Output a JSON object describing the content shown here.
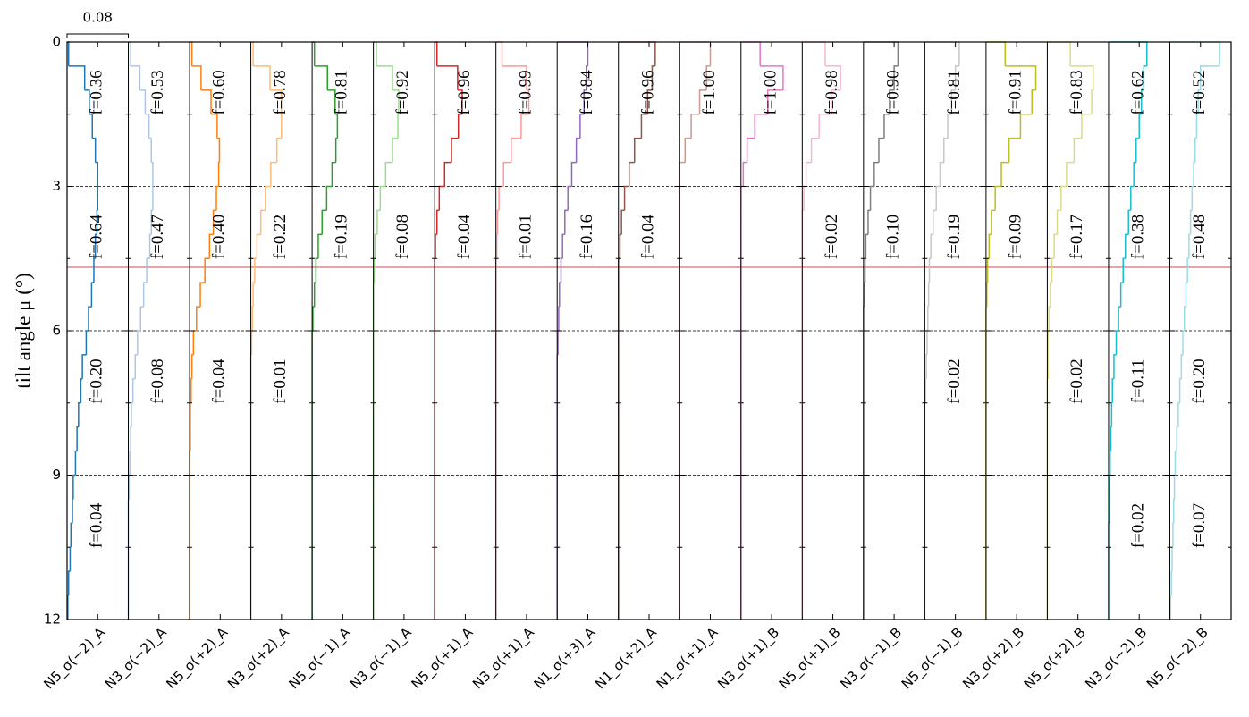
{
  "chart_data": {
    "type": "panel-histogram",
    "ylabel": "tilt angle μ (°)",
    "ylim": [
      0,
      12
    ],
    "yticks": [
      0,
      3,
      6,
      9,
      12
    ],
    "yticks_minor": [
      1.5,
      4.5,
      7.5,
      10.5
    ],
    "xlim": [
      0,
      0.08
    ],
    "xticks": [
      0.04
    ],
    "scale_bar": 0.08,
    "grid": true,
    "reference_line": {
      "value": 4.68,
      "color": "#c0504d"
    },
    "bins": [
      0,
      0.5,
      1,
      1.5,
      2,
      2.5,
      3,
      3.5,
      4,
      4.5,
      5,
      5.5,
      6,
      6.5,
      7,
      7.5,
      8,
      8.5,
      9,
      9.5,
      10,
      10.5,
      11,
      11.5,
      12
    ],
    "band_edges": [
      0,
      3,
      6,
      9,
      12
    ],
    "series": [
      {
        "name": "N5_σ(−2)_A",
        "color": "#1f77b4",
        "values": [
          0.002,
          0.023,
          0.029,
          0.033,
          0.037,
          0.04,
          0.04,
          0.039,
          0.037,
          0.035,
          0.032,
          0.028,
          0.025,
          0.02,
          0.018,
          0.015,
          0.013,
          0.011,
          0.008,
          0.007,
          0.005,
          0.004,
          0.002,
          0.001
        ],
        "fractions": [
          0.36,
          0.64,
          0.2,
          0.04
        ],
        "fraction_labels": [
          "f=0.36",
          "f=0.64",
          "f=0.20",
          "f=0.04"
        ]
      },
      {
        "name": "N3_σ(−2)_A",
        "color": "#aec7e8",
        "values": [
          0.003,
          0.015,
          0.022,
          0.027,
          0.03,
          0.032,
          0.032,
          0.03,
          0.028,
          0.024,
          0.02,
          0.016,
          0.012,
          0.009,
          0.006,
          0.004,
          0.003,
          0.002,
          0.001,
          0,
          0,
          0,
          0,
          0
        ],
        "fractions": [
          0.53,
          0.47,
          0.08,
          null
        ],
        "fraction_labels": [
          "f=0.53",
          "f=0.47",
          "f=0.08",
          null
        ]
      },
      {
        "name": "N5_σ(+2)_A",
        "color": "#ff7f0e",
        "values": [
          0.003,
          0.015,
          0.028,
          0.036,
          0.039,
          0.038,
          0.035,
          0.031,
          0.026,
          0.02,
          0.014,
          0.009,
          0.005,
          0.003,
          0.002,
          0.001,
          0.001,
          0,
          0,
          0,
          0,
          0,
          0,
          0
        ],
        "fractions": [
          0.6,
          0.4,
          0.04,
          null
        ],
        "fraction_labels": [
          "f=0.60",
          "f=0.40",
          "f=0.04",
          null
        ]
      },
      {
        "name": "N3_σ(+2)_A",
        "color": "#ffbb78",
        "values": [
          0.003,
          0.025,
          0.04,
          0.04,
          0.034,
          0.026,
          0.019,
          0.013,
          0.008,
          0.005,
          0.003,
          0.002,
          0.001,
          0,
          0,
          0,
          0,
          0,
          0,
          0,
          0,
          0,
          0,
          0
        ],
        "fractions": [
          0.78,
          0.22,
          0.01,
          null
        ],
        "fraction_labels": [
          "f=0.78",
          "f=0.22",
          "f=0.01",
          null
        ]
      },
      {
        "name": "N5_σ(−1)_A",
        "color": "#2ca02c",
        "values": [
          0.003,
          0.02,
          0.03,
          0.033,
          0.031,
          0.026,
          0.019,
          0.013,
          0.008,
          0.005,
          0.003,
          0.001,
          0,
          0,
          0,
          0,
          0,
          0,
          0,
          0,
          0,
          0,
          0,
          0
        ],
        "fractions": [
          0.81,
          0.19,
          null,
          null
        ],
        "fraction_labels": [
          "f=0.81",
          "f=0.19",
          null,
          null
        ]
      },
      {
        "name": "N3_σ(−1)_A",
        "color": "#98df8a",
        "values": [
          0.004,
          0.025,
          0.033,
          0.032,
          0.025,
          0.016,
          0.009,
          0.005,
          0.002,
          0.001,
          0,
          0,
          0,
          0,
          0,
          0,
          0,
          0,
          0,
          0,
          0,
          0,
          0,
          0
        ],
        "fractions": [
          0.92,
          0.08,
          null,
          null
        ],
        "fraction_labels": [
          "f=0.92",
          "f=0.08",
          null,
          null
        ]
      },
      {
        "name": "N5_σ(+1)_A",
        "color": "#d62728",
        "values": [
          0.003,
          0.03,
          0.036,
          0.031,
          0.022,
          0.013,
          0.006,
          0.003,
          0.001,
          0,
          0,
          0,
          0,
          0,
          0,
          0,
          0,
          0,
          0,
          0,
          0,
          0,
          0,
          0
        ],
        "fractions": [
          0.96,
          0.04,
          null,
          null
        ],
        "fraction_labels": [
          "f=0.96",
          "f=0.04",
          null,
          null
        ]
      },
      {
        "name": "N3_σ(+1)_A",
        "color": "#ff9896",
        "values": [
          0.008,
          0.04,
          0.043,
          0.033,
          0.02,
          0.01,
          0.004,
          0.002,
          0.001,
          0,
          0,
          0,
          0,
          0,
          0,
          0,
          0,
          0,
          0,
          0,
          0,
          0,
          0,
          0
        ],
        "fractions": [
          0.99,
          0.01,
          null,
          null
        ],
        "fraction_labels": [
          "f=0.99",
          "f=0.01",
          null,
          null
        ]
      },
      {
        "name": "N1_σ(+3)_A",
        "color": "#9467bd",
        "values": [
          0.04,
          0.038,
          0.035,
          0.03,
          0.025,
          0.019,
          0.014,
          0.01,
          0.007,
          0.005,
          0.003,
          0.002,
          0.001,
          0,
          0,
          0,
          0,
          0,
          0,
          0,
          0,
          0,
          0,
          0
        ],
        "fractions": [
          0.84,
          0.16,
          null,
          null
        ],
        "fraction_labels": [
          "f=0.84",
          "f=0.16",
          null,
          null
        ]
      },
      {
        "name": "N1_σ(+2)_A",
        "color": "#8c564b",
        "values": [
          0.048,
          0.044,
          0.038,
          0.03,
          0.021,
          0.014,
          0.008,
          0.004,
          0.002,
          0,
          0,
          0,
          0,
          0,
          0,
          0,
          0,
          0,
          0,
          0,
          0,
          0,
          0,
          0
        ],
        "fractions": [
          0.96,
          0.04,
          null,
          null
        ],
        "fraction_labels": [
          "f=0.96",
          "f=0.04",
          null,
          null
        ]
      },
      {
        "name": "N1_σ(+1)_A",
        "color": "#c49c94",
        "values": [
          0.04,
          0.035,
          0.026,
          0.015,
          0.007,
          0,
          0,
          0,
          0,
          0,
          0,
          0,
          0,
          0,
          0,
          0,
          0,
          0,
          0,
          0,
          0,
          0,
          0,
          0
        ],
        "fractions": [
          1.0,
          null,
          null,
          null
        ],
        "fraction_labels": [
          "f=1.00",
          null,
          null,
          null
        ]
      },
      {
        "name": "N3_σ(+1)_B",
        "color": "#e377c2",
        "values": [
          0.025,
          0.055,
          0.035,
          0.018,
          0.008,
          0.003,
          0,
          0,
          0,
          0,
          0,
          0,
          0,
          0,
          0,
          0,
          0,
          0,
          0,
          0,
          0,
          0,
          0,
          0
        ],
        "fractions": [
          1.0,
          null,
          null,
          null
        ],
        "fraction_labels": [
          "f=1.00",
          null,
          null,
          null
        ]
      },
      {
        "name": "N5_σ(+1)_B",
        "color": "#f7b6d2",
        "values": [
          0.03,
          0.05,
          0.038,
          0.022,
          0.012,
          0.005,
          0.002,
          0,
          0,
          0,
          0,
          0,
          0,
          0,
          0,
          0,
          0,
          0,
          0,
          0,
          0,
          0,
          0,
          0
        ],
        "fractions": [
          0.98,
          0.02,
          null,
          null
        ],
        "fraction_labels": [
          "f=0.98",
          "f=0.02",
          null,
          null
        ]
      },
      {
        "name": "N3_σ(−1)_B",
        "color": "#7f7f7f",
        "values": [
          0.045,
          0.04,
          0.034,
          0.027,
          0.02,
          0.014,
          0.009,
          0.006,
          0.003,
          0.002,
          0.001,
          0,
          0,
          0,
          0,
          0,
          0,
          0,
          0,
          0,
          0,
          0,
          0,
          0
        ],
        "fractions": [
          0.9,
          0.1,
          null,
          null
        ],
        "fraction_labels": [
          "f=0.90",
          "f=0.10",
          null,
          null
        ]
      },
      {
        "name": "N5_σ(−1)_B",
        "color": "#c7c7c7",
        "values": [
          0.045,
          0.04,
          0.035,
          0.03,
          0.025,
          0.02,
          0.015,
          0.011,
          0.008,
          0.006,
          0.005,
          0.004,
          0.003,
          0.002,
          0.001,
          0,
          0,
          0,
          0,
          0,
          0,
          0,
          0,
          0
        ],
        "fractions": [
          0.81,
          0.19,
          0.02,
          null
        ],
        "fraction_labels": [
          "f=0.81",
          "f=0.19",
          "f=0.02",
          null
        ]
      },
      {
        "name": "N3_σ(+2)_B",
        "color": "#bcbd22",
        "values": [
          0.025,
          0.065,
          0.06,
          0.045,
          0.03,
          0.02,
          0.012,
          0.007,
          0.004,
          0.002,
          0.001,
          0,
          0,
          0,
          0,
          0,
          0,
          0,
          0,
          0,
          0,
          0,
          0,
          0
        ],
        "fractions": [
          0.91,
          0.09,
          null,
          null
        ],
        "fraction_labels": [
          "f=0.91",
          "f=0.09",
          null,
          null
        ]
      },
      {
        "name": "N5_σ(+2)_B",
        "color": "#dbdb8d",
        "values": [
          0.03,
          0.06,
          0.058,
          0.045,
          0.035,
          0.025,
          0.018,
          0.013,
          0.009,
          0.006,
          0.004,
          0.002,
          0.001,
          0.001,
          0,
          0,
          0,
          0,
          0,
          0,
          0,
          0,
          0,
          0
        ],
        "fractions": [
          0.83,
          0.17,
          0.02,
          null
        ],
        "fraction_labels": [
          "f=0.83",
          "f=0.17",
          "f=0.02",
          null
        ]
      },
      {
        "name": "N3_σ(−2)_B",
        "color": "#17becf",
        "values": [
          0.05,
          0.046,
          0.043,
          0.04,
          0.036,
          0.033,
          0.029,
          0.026,
          0.022,
          0.019,
          0.016,
          0.013,
          0.01,
          0.007,
          0.005,
          0.004,
          0.003,
          0.002,
          0.001,
          0.001,
          0,
          0,
          0,
          0
        ],
        "fractions": [
          0.62,
          0.38,
          0.11,
          0.02
        ],
        "fraction_labels": [
          "f=0.62",
          "f=0.38",
          "f=0.11",
          "f=0.02"
        ]
      },
      {
        "name": "N5_σ(−2)_B",
        "color": "#9edae5",
        "values": [
          0.065,
          0.04,
          0.037,
          0.035,
          0.033,
          0.031,
          0.029,
          0.027,
          0.025,
          0.023,
          0.021,
          0.019,
          0.017,
          0.015,
          0.013,
          0.011,
          0.009,
          0.007,
          0.006,
          0.005,
          0.004,
          0.003,
          0.002,
          0.001
        ],
        "fractions": [
          0.52,
          0.48,
          0.2,
          0.07
        ],
        "fraction_labels": [
          "f=0.52",
          "f=0.48",
          "f=0.20",
          "f=0.07"
        ]
      }
    ]
  }
}
